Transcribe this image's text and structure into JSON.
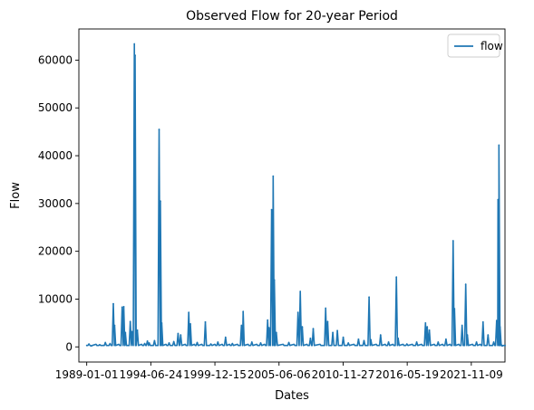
{
  "chart_data": {
    "type": "line",
    "title": "Observed Flow for 20-year Period",
    "xlabel": "Dates",
    "ylabel": "Flow",
    "xlim": [
      "1988-05-01",
      "2024-09-25"
    ],
    "ylim": [
      -3170,
      66520
    ],
    "x_ticks": [
      "1989-01-01",
      "1994-06-24",
      "1999-12-15",
      "2005-06-06",
      "2010-11-27",
      "2016-05-19",
      "2021-11-09"
    ],
    "y_ticks": [
      0,
      10000,
      20000,
      30000,
      40000,
      50000,
      60000
    ],
    "y_tick_labels": [
      "0",
      "10000",
      "20000",
      "30000",
      "40000",
      "50000",
      "60000"
    ],
    "grid": false,
    "legend_placement": "upper right",
    "series": [
      {
        "name": "flow",
        "color": "#1f77b4",
        "baseline": 300,
        "points": [
          [
            "1989-01-01",
            300
          ],
          [
            "1989-03-12",
            600
          ],
          [
            "1989-05-20",
            200
          ],
          [
            "1990-02-10",
            450
          ],
          [
            "1990-08-05",
            900
          ],
          [
            "1990-12-30",
            700
          ],
          [
            "1991-04-10",
            9000
          ],
          [
            "1991-05-20",
            4500
          ],
          [
            "1992-01-10",
            8300
          ],
          [
            "1992-03-01",
            8400
          ],
          [
            "1992-04-20",
            3000
          ],
          [
            "1992-09-20",
            5300
          ],
          [
            "1992-11-15",
            3200
          ],
          [
            "1993-01-25",
            63400
          ],
          [
            "1993-02-18",
            61000
          ],
          [
            "1993-05-01",
            3500
          ],
          [
            "1993-12-15",
            700
          ],
          [
            "1994-03-10",
            1200
          ],
          [
            "1994-05-05",
            800
          ],
          [
            "1994-10-15",
            1300
          ],
          [
            "1995-03-10",
            45500
          ],
          [
            "1995-04-18",
            30500
          ],
          [
            "1995-06-01",
            5000
          ],
          [
            "1996-01-15",
            800
          ],
          [
            "1996-06-10",
            1100
          ],
          [
            "1996-10-20",
            2800
          ],
          [
            "1997-01-10",
            2500
          ],
          [
            "1997-09-20",
            7200
          ],
          [
            "1997-11-10",
            4800
          ],
          [
            "1998-06-10",
            900
          ],
          [
            "1999-02-20",
            5200
          ],
          [
            "1999-08-10",
            600
          ],
          [
            "2000-03-15",
            1000
          ],
          [
            "2000-11-10",
            2000
          ],
          [
            "2001-06-10",
            700
          ],
          [
            "2002-03-20",
            4500
          ],
          [
            "2002-05-15",
            7400
          ],
          [
            "2003-02-10",
            1000
          ],
          [
            "2003-11-10",
            800
          ],
          [
            "2004-06-15",
            5600
          ],
          [
            "2004-08-01",
            4000
          ],
          [
            "2004-10-18",
            28700
          ],
          [
            "2004-12-05",
            35700
          ],
          [
            "2005-01-10",
            14000
          ],
          [
            "2005-03-15",
            3000
          ],
          [
            "2006-04-10",
            900
          ],
          [
            "2007-01-20",
            7200
          ],
          [
            "2007-04-01",
            11600
          ],
          [
            "2007-06-01",
            4200
          ],
          [
            "2008-02-10",
            1800
          ],
          [
            "2008-05-10",
            3800
          ],
          [
            "2009-06-01",
            8100
          ],
          [
            "2009-08-01",
            5300
          ],
          [
            "2010-01-10",
            3000
          ],
          [
            "2010-06-01",
            3400
          ],
          [
            "2010-12-01",
            2000
          ],
          [
            "2011-05-10",
            800
          ],
          [
            "2012-03-20",
            1600
          ],
          [
            "2012-09-10",
            1300
          ],
          [
            "2013-02-15",
            10400
          ],
          [
            "2013-04-10",
            1500
          ],
          [
            "2014-02-10",
            2500
          ],
          [
            "2014-10-15",
            1000
          ],
          [
            "2015-06-15",
            14600
          ],
          [
            "2015-08-10",
            1800
          ],
          [
            "2016-05-10",
            600
          ],
          [
            "2017-03-10",
            1000
          ],
          [
            "2017-12-10",
            5000
          ],
          [
            "2018-02-01",
            4200
          ],
          [
            "2018-04-10",
            3500
          ],
          [
            "2019-01-10",
            1000
          ],
          [
            "2019-09-10",
            1600
          ],
          [
            "2020-04-20",
            22200
          ],
          [
            "2020-06-01",
            8000
          ],
          [
            "2021-01-25",
            4500
          ],
          [
            "2021-05-18",
            13100
          ],
          [
            "2021-07-10",
            2500
          ],
          [
            "2022-04-20",
            1000
          ],
          [
            "2022-11-10",
            5200
          ],
          [
            "2023-04-15",
            2500
          ],
          [
            "2023-10-10",
            1000
          ],
          [
            "2024-01-10",
            5500
          ],
          [
            "2024-02-20",
            30800
          ],
          [
            "2024-03-20",
            42200
          ],
          [
            "2024-04-25",
            4200
          ],
          [
            "2024-05-20",
            600
          ],
          [
            "2024-06-30",
            200
          ]
        ]
      }
    ]
  }
}
